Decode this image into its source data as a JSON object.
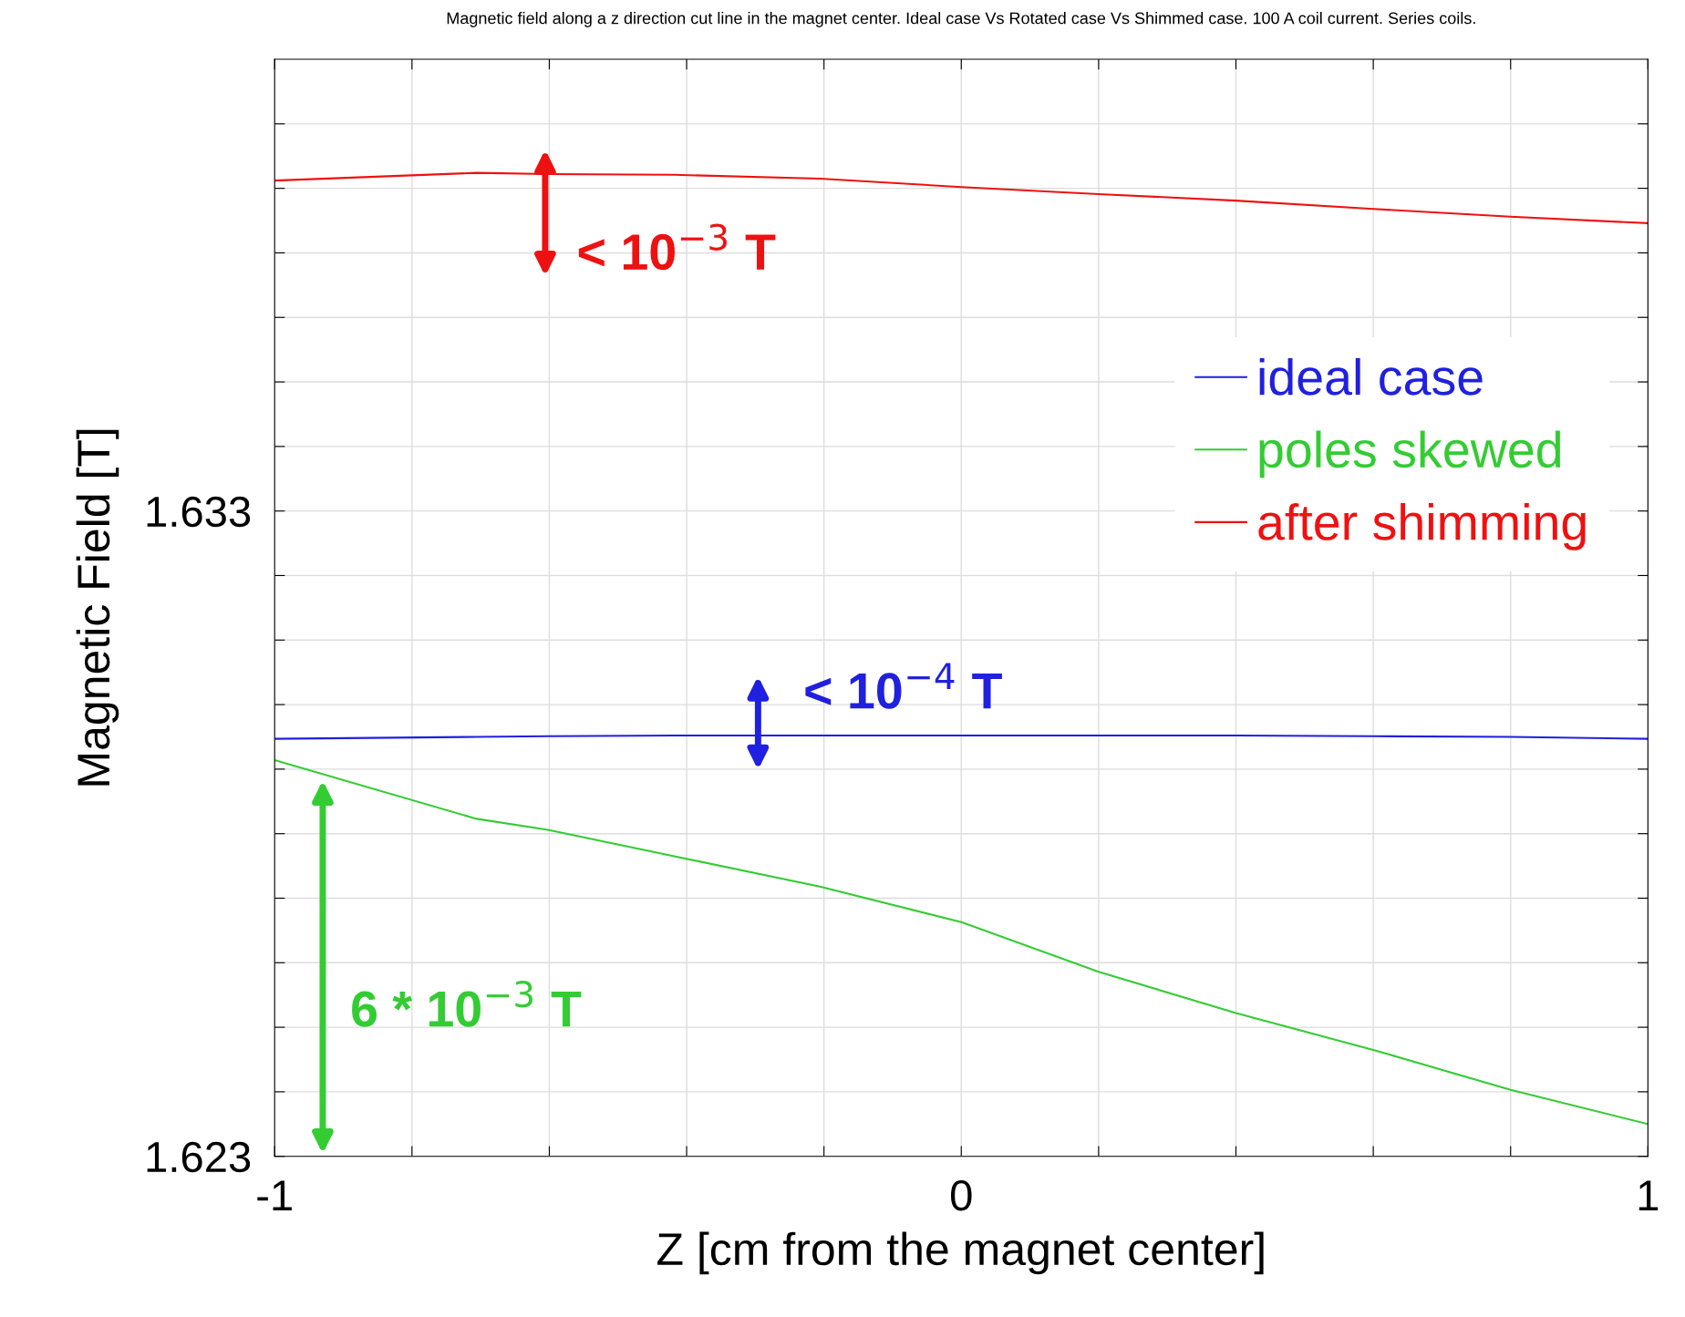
{
  "chart_data": {
    "type": "line",
    "title": "Magnetic field along a z direction cut line in the magnet center. Ideal case Vs Rotated case Vs Shimmed case. 100 A coil current. Series coils.",
    "xlabel": "Z [cm from the magnet center]",
    "ylabel": "Magnetic Field [T]",
    "x": [
      -1,
      -0.706,
      -0.602,
      -0.418,
      -0.206,
      0,
      0.2,
      0.4,
      0.6,
      0.8,
      1
    ],
    "series": [
      {
        "name": "ideal case",
        "color": "#2020e0",
        "values": [
          1.62947,
          1.6295,
          1.62951,
          1.62952,
          1.62952,
          1.62952,
          1.62952,
          1.62952,
          1.62951,
          1.6295,
          1.62947
        ]
      },
      {
        "name": "poles skewed",
        "color": "#33cc33",
        "values": [
          1.62914,
          1.62823,
          1.62806,
          1.62765,
          1.62718,
          1.62663,
          1.62586,
          1.62522,
          1.62465,
          1.62403,
          1.6235
        ]
      },
      {
        "name": "after shimming",
        "color": "#ee1111",
        "values": [
          1.63812,
          1.63824,
          1.63822,
          1.63821,
          1.63815,
          1.63802,
          1.63791,
          1.63781,
          1.63768,
          1.63756,
          1.63746
        ]
      }
    ],
    "annotations": [
      "< 10$^{−3}$ T",
      "< 10$^{−4}$ T",
      "6 * 10$^{−3}$ T"
    ],
    "xlim": [
      -1,
      1
    ],
    "xticks": [
      -1,
      {
        "value": -0.8,
        "label": null
      },
      {
        "value": -0.6,
        "label": null
      },
      {
        "value": -0.4,
        "label": null
      },
      {
        "value": -0.2,
        "label": null
      },
      0,
      {
        "value": 0.2,
        "label": null
      },
      {
        "value": 0.4,
        "label": null
      },
      {
        "value": 0.6,
        "label": null
      },
      {
        "value": 0.8,
        "label": null
      },
      1
    ],
    "ylim": [
      1.623,
      1.64
    ],
    "yticks": [
      1.623,
      {
        "value": 1.624,
        "label": null
      },
      {
        "value": 1.625,
        "label": null
      },
      {
        "value": 1.626,
        "label": null
      },
      {
        "value": 1.627,
        "label": null
      },
      {
        "value": 1.628,
        "label": null
      },
      {
        "value": 1.629,
        "label": null
      },
      {
        "value": 1.63,
        "label": null
      },
      {
        "value": 1.631,
        "label": null
      },
      {
        "value": 1.632,
        "label": null
      },
      1.633,
      {
        "value": 1.634,
        "label": null
      },
      {
        "value": 1.635,
        "label": null
      },
      {
        "value": 1.636,
        "label": null
      },
      {
        "value": 1.637,
        "label": null
      },
      {
        "value": 1.638,
        "label": null
      },
      {
        "value": 1.639,
        "label": null
      }
    ],
    "grid": true,
    "legend": "right",
    "marker": "none",
    "line_style": "solid"
  }
}
